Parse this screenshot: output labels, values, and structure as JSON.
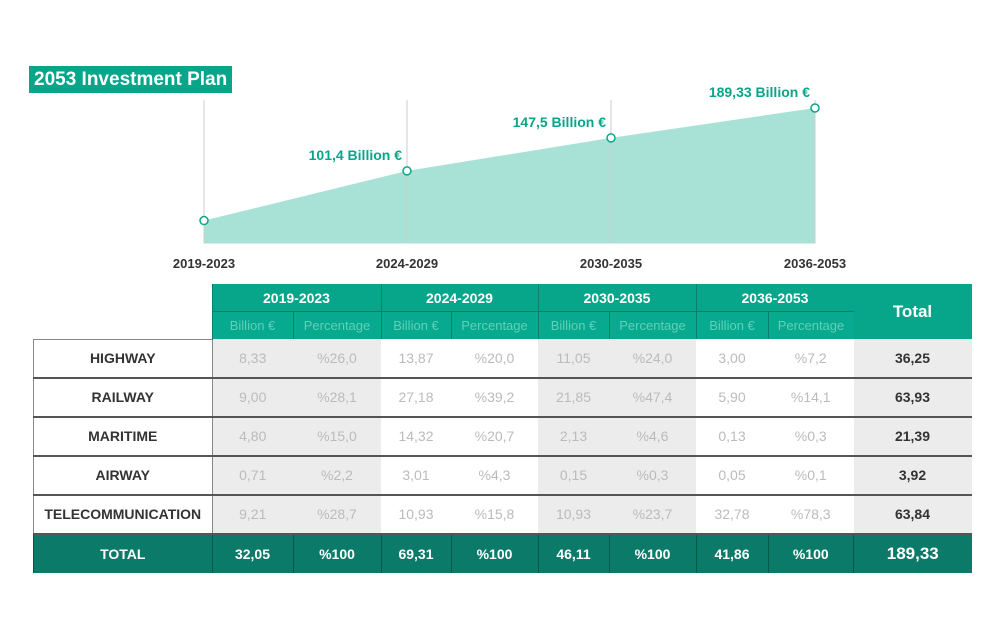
{
  "title": "2053 Investment Plan",
  "chart_data": {
    "type": "area",
    "title": "2053 Investment Plan",
    "categories": [
      "2019-2023",
      "2024-2029",
      "2030-2035",
      "2036-2053"
    ],
    "values": [
      32.05,
      101.4,
      147.5,
      189.33
    ],
    "labels": [
      "",
      "101,4 Billion €",
      "147,5 Billion €",
      "189,33 Billion €"
    ],
    "ylim": [
      0,
      189.33
    ],
    "color": "#a8e2d7",
    "accent": "#07a58a"
  },
  "table": {
    "periods": [
      "2019-2023",
      "2024-2029",
      "2030-2035",
      "2036-2053"
    ],
    "sub": [
      "Billion €",
      "Percentage"
    ],
    "total_header": "Total",
    "rows": [
      {
        "label": "HIGHWAY",
        "cells": [
          "8,33",
          "%26,0",
          "13,87",
          "%20,0",
          "11,05",
          "%24,0",
          "3,00",
          "%7,2"
        ],
        "total": "36,25"
      },
      {
        "label": "RAILWAY",
        "cells": [
          "9,00",
          "%28,1",
          "27,18",
          "%39,2",
          "21,85",
          "%47,4",
          "5,90",
          "%14,1"
        ],
        "total": "63,93"
      },
      {
        "label": "MARITIME",
        "cells": [
          "4,80",
          "%15,0",
          "14,32",
          "%20,7",
          "2,13",
          "%4,6",
          "0,13",
          "%0,3"
        ],
        "total": "21,39"
      },
      {
        "label": "AIRWAY",
        "cells": [
          "0,71",
          "%2,2",
          "3,01",
          "%4,3",
          "0,15",
          "%0,3",
          "0,05",
          "%0,1"
        ],
        "total": "3,92"
      },
      {
        "label": "TELECOMMUNICATION",
        "cells": [
          "9,21",
          "%28,7",
          "10,93",
          "%15,8",
          "10,93",
          "%23,7",
          "32,78",
          "%78,3"
        ],
        "total": "63,84"
      }
    ],
    "total_row": {
      "label": "TOTAL",
      "cells": [
        "32,05",
        "%100",
        "69,31",
        "%100",
        "46,11",
        "%100",
        "41,86",
        "%100"
      ],
      "total": "189,33"
    }
  }
}
